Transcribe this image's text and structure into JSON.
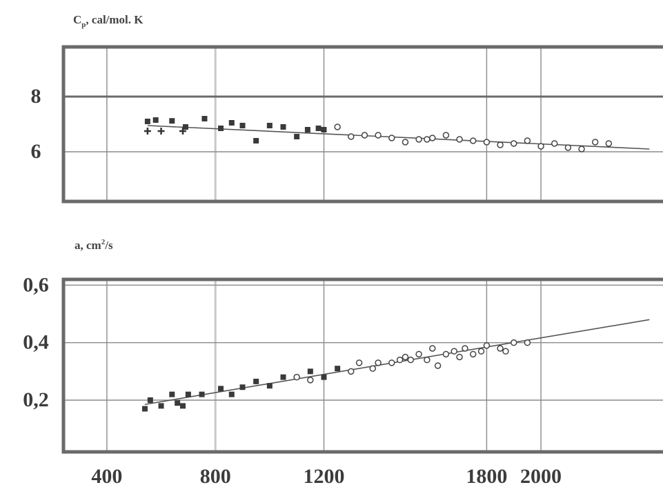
{
  "chart_data": [
    {
      "type": "scatter",
      "title": "",
      "ylabel": {
        "base": "C",
        "sub": "p",
        "rest": ", cal/mol. K"
      },
      "xlabel": "",
      "xlim": [
        240,
        2450
      ],
      "ylim": [
        4.2,
        9.8
      ],
      "x_ticks": [
        400,
        800,
        1200,
        1800,
        2000
      ],
      "y_ticks": [
        6,
        8
      ],
      "y_tick_labels": [
        "6",
        "8"
      ],
      "grid": true,
      "trend_line": {
        "x": [
          550,
          2400
        ],
        "y": [
          6.95,
          6.1
        ]
      },
      "series": [
        {
          "marker": "filled",
          "x": [
            550,
            580,
            640,
            690,
            760,
            820,
            860,
            900,
            950,
            1000,
            1050,
            1100,
            1140,
            1180,
            1200
          ],
          "y": [
            7.1,
            7.15,
            7.12,
            6.9,
            7.2,
            6.85,
            7.05,
            6.95,
            6.4,
            6.95,
            6.9,
            6.55,
            6.8,
            6.85,
            6.8
          ]
        },
        {
          "marker": "cross",
          "x": [
            550,
            600,
            680
          ],
          "y": [
            6.75,
            6.75,
            6.75
          ]
        },
        {
          "marker": "open",
          "x": [
            1250,
            1300,
            1350,
            1400,
            1450,
            1500,
            1550,
            1580,
            1600,
            1650,
            1700,
            1750,
            1800,
            1850,
            1900,
            1950,
            2000,
            2050,
            2100,
            2150,
            2200,
            2250
          ],
          "y": [
            6.9,
            6.55,
            6.6,
            6.6,
            6.5,
            6.35,
            6.45,
            6.45,
            6.5,
            6.6,
            6.45,
            6.4,
            6.35,
            6.25,
            6.3,
            6.4,
            6.2,
            6.3,
            6.15,
            6.1,
            6.35,
            6.3
          ]
        }
      ]
    },
    {
      "type": "scatter",
      "title": "",
      "ylabel": {
        "base": "a, cm",
        "sup": "2",
        "rest": "/s"
      },
      "xlabel": "",
      "xlim": [
        240,
        2450
      ],
      "ylim": [
        0.02,
        0.62
      ],
      "x_ticks": [
        400,
        800,
        1200,
        1800,
        2000
      ],
      "x_tick_labels": [
        "400",
        "800",
        "1200",
        "1800",
        "2000"
      ],
      "y_ticks": [
        0.2,
        0.4,
        0.6
      ],
      "y_tick_labels": [
        "0,2",
        "0,4",
        "0,6"
      ],
      "grid": true,
      "trend_line": {
        "x": [
          540,
          2400
        ],
        "y": [
          0.185,
          0.48
        ]
      },
      "series": [
        {
          "marker": "filled",
          "x": [
            540,
            560,
            600,
            640,
            660,
            680,
            700,
            750,
            820,
            860,
            900,
            950,
            1000,
            1050,
            1150,
            1200,
            1250
          ],
          "y": [
            0.17,
            0.2,
            0.18,
            0.22,
            0.19,
            0.18,
            0.22,
            0.22,
            0.24,
            0.22,
            0.245,
            0.265,
            0.25,
            0.28,
            0.3,
            0.28,
            0.31
          ]
        },
        {
          "marker": "open",
          "x": [
            1100,
            1150,
            1300,
            1330,
            1380,
            1400,
            1450,
            1480,
            1500,
            1520,
            1550,
            1580,
            1600,
            1620,
            1650,
            1680,
            1700,
            1720,
            1750,
            1780,
            1800,
            1850,
            1870,
            1900,
            1950
          ],
          "y": [
            0.28,
            0.27,
            0.3,
            0.33,
            0.31,
            0.33,
            0.33,
            0.34,
            0.35,
            0.34,
            0.36,
            0.34,
            0.38,
            0.32,
            0.36,
            0.37,
            0.35,
            0.38,
            0.36,
            0.37,
            0.39,
            0.38,
            0.37,
            0.4,
            0.4
          ]
        }
      ]
    }
  ]
}
